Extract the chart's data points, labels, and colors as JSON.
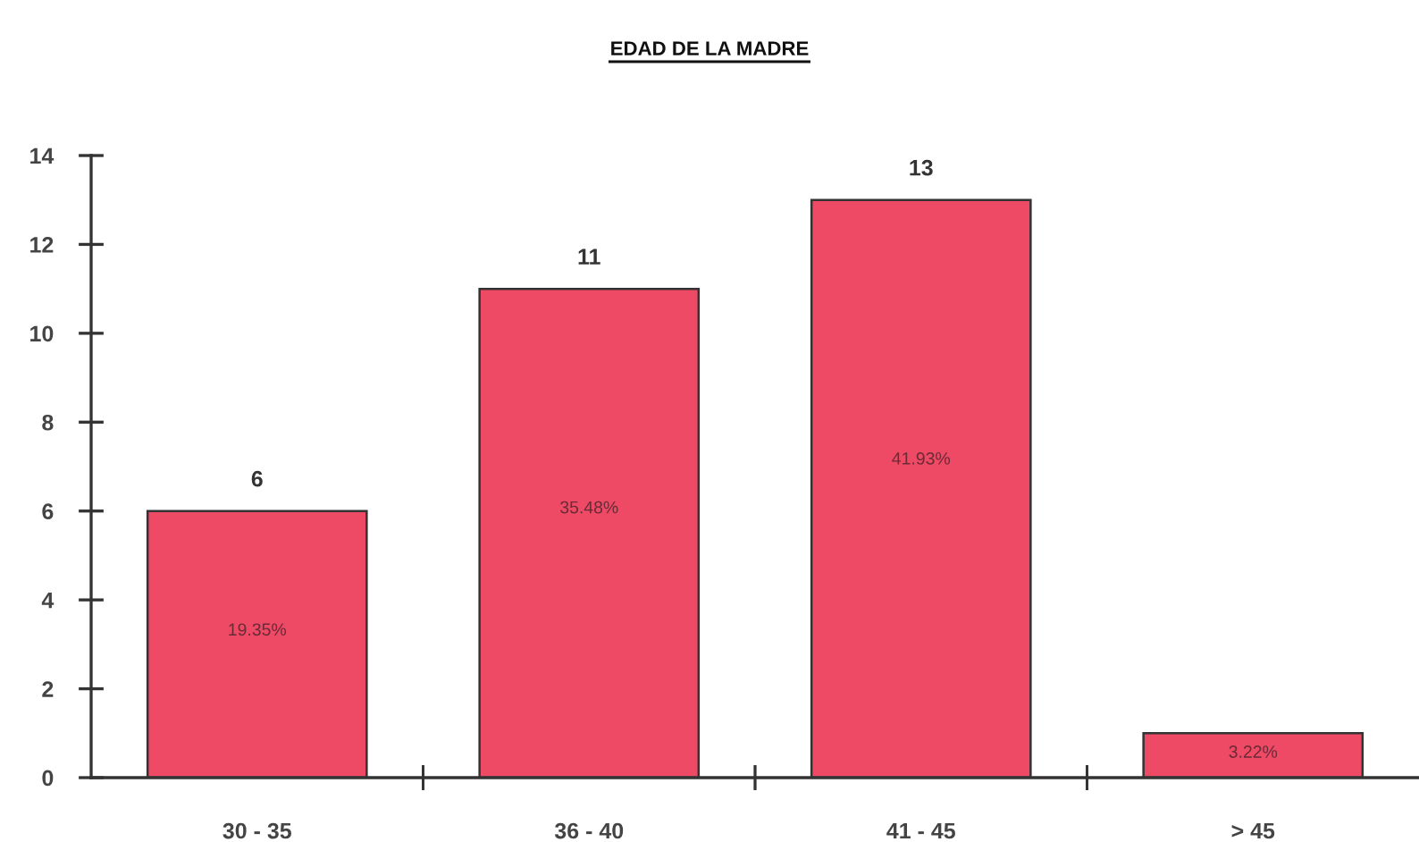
{
  "chart_data": {
    "type": "bar",
    "title": "EDAD DE LA MADRE",
    "categories": [
      "30 - 35",
      "36 - 40",
      "41 - 45",
      "> 45"
    ],
    "values": [
      6,
      11,
      13,
      1
    ],
    "color": "#ee4a66",
    "value_labels": [
      "6",
      "11",
      "13",
      null
    ],
    "ylim": [
      0,
      14
    ],
    "yticks": [
      0,
      2,
      4,
      6,
      8,
      10,
      12,
      14
    ],
    "annotations": [
      "19.35%",
      "35.48%",
      "41.93%",
      "3.22%"
    ]
  }
}
